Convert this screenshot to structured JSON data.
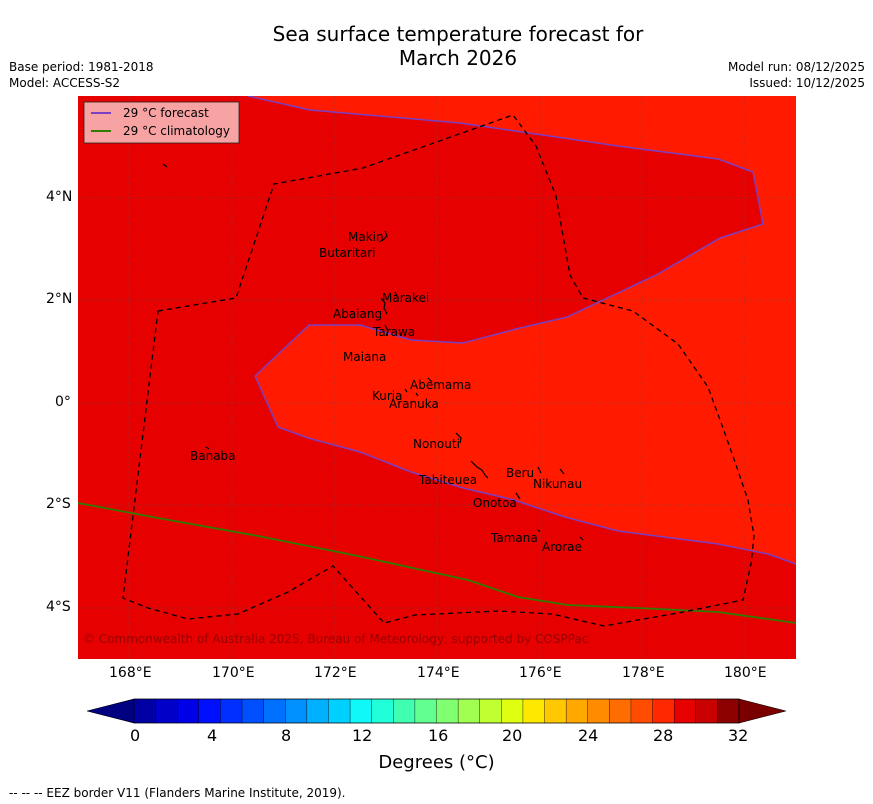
{
  "title": {
    "line1": "Sea surface temperature forecast for",
    "line2": "March 2026"
  },
  "meta_left": {
    "base_period": "Base period: 1981-2018",
    "model": "Model: ACCESS-S2"
  },
  "meta_right": {
    "model_run": "Model run: 08/12/2025",
    "issued": "Issued: 10/12/2025"
  },
  "legend": {
    "forecast_label": "29 °C  forecast",
    "climatology_label": "29 °C  climatology",
    "forecast_color": "#7b3fc2",
    "climatology_color": "#2e7d00"
  },
  "colors": {
    "region_warm": "#ff1a00",
    "region_hot": "#e60000",
    "eez": "#000000",
    "gridline": "#555555"
  },
  "map": {
    "lon_range_E": [
      167,
      181
    ],
    "lat_range": [
      -5,
      6
    ],
    "lon_ticks": [
      "168°E",
      "170°E",
      "172°E",
      "174°E",
      "176°E",
      "178°E",
      "180°E"
    ],
    "lat_ticks": [
      "4°N",
      "2°N",
      "0°",
      "2°S",
      "4°S"
    ],
    "copyright": "© Commonwealth of Australia 2025, Bureau of Meteorology, supported by COSPPac",
    "places": [
      {
        "name": "Makin",
        "lon": 172.95,
        "lat": 3.18
      },
      {
        "name": "Butaritari",
        "lon": 172.82,
        "lat": 3.0
      },
      {
        "name": "Marakei",
        "lon": 173.3,
        "lat": 1.98
      },
      {
        "name": "Abaiang",
        "lon": 172.95,
        "lat": 1.85
      },
      {
        "name": "Tarawa",
        "lon": 173.0,
        "lat": 1.4
      },
      {
        "name": "Maiana",
        "lon": 173.0,
        "lat": 0.92
      },
      {
        "name": "Abemama",
        "lon": 173.85,
        "lat": 0.45
      },
      {
        "name": "Kuria",
        "lon": 173.4,
        "lat": 0.22
      },
      {
        "name": "Aranuka",
        "lon": 173.62,
        "lat": 0.17
      },
      {
        "name": "Nonouti",
        "lon": 174.4,
        "lat": -0.65
      },
      {
        "name": "Banaba",
        "lon": 169.53,
        "lat": -0.87
      },
      {
        "name": "Tabiteuea",
        "lon": 174.8,
        "lat": -1.25
      },
      {
        "name": "Beru",
        "lon": 175.98,
        "lat": -1.33
      },
      {
        "name": "Nikunau",
        "lon": 176.45,
        "lat": -1.37
      },
      {
        "name": "Onotoa",
        "lon": 175.57,
        "lat": -1.8
      },
      {
        "name": "Tamana",
        "lon": 175.98,
        "lat": -2.5
      },
      {
        "name": "Arorae",
        "lon": 176.83,
        "lat": -2.65
      }
    ]
  },
  "colorbar": {
    "label": "Degrees (°C)",
    "tick_labels": [
      "0",
      "4",
      "8",
      "12",
      "16",
      "20",
      "24",
      "28",
      "32"
    ],
    "under_color": "#000080",
    "over_color": "#7a0000",
    "colors": [
      "#0000a5",
      "#0000c8",
      "#0000e6",
      "#0010ff",
      "#0030ff",
      "#0050ff",
      "#0070ff",
      "#0090ff",
      "#00b0ff",
      "#00d0ff",
      "#10f8f8",
      "#20ffd8",
      "#40ffb0",
      "#60ff90",
      "#80ff70",
      "#a0ff50",
      "#c0ff30",
      "#e0ff10",
      "#ffe800",
      "#ffc800",
      "#ffa800",
      "#ff8c00",
      "#ff6c00",
      "#ff4c00",
      "#ff2800",
      "#e60000",
      "#c80000",
      "#8c0000"
    ]
  },
  "footnote": "--  --  -- EEZ border V11 (Flanders Marine Institute, 2019)."
}
